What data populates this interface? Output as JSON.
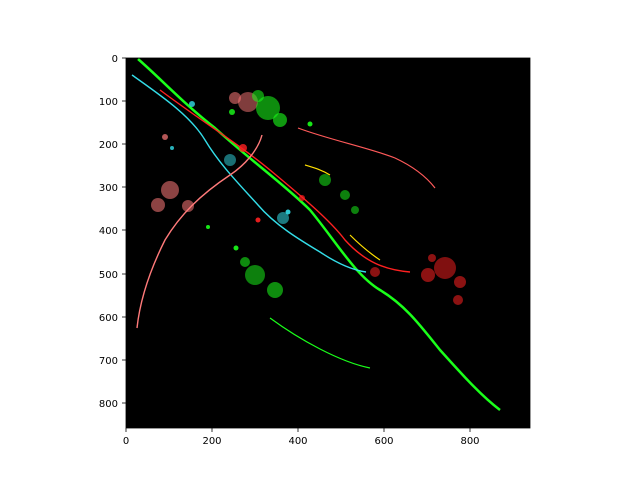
{
  "image_panel": {
    "background_color": "#000000",
    "colors": {
      "green": "#1aff1a",
      "red": "#ff2020",
      "pink": "#ff7a7a",
      "cyan": "#33dde8",
      "yellow": "#ffe000"
    }
  },
  "axes": {
    "x_range": [
      0,
      937
    ],
    "y_range": [
      0,
      857
    ],
    "y_inverted": true,
    "x_ticks": [
      "0",
      "200",
      "400",
      "600",
      "800"
    ],
    "y_ticks": [
      "0",
      "100",
      "200",
      "300",
      "400",
      "500",
      "600",
      "700",
      "800"
    ]
  }
}
